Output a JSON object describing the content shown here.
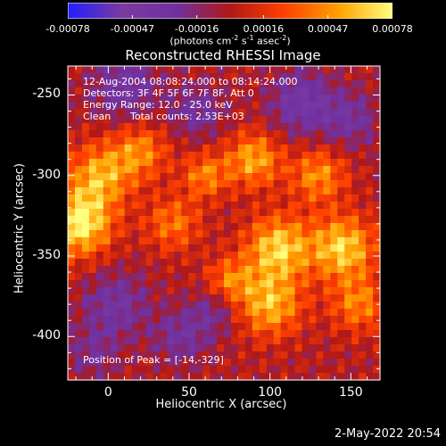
{
  "chart_data": {
    "type": "heatmap",
    "title": "Reconstructed RHESSI Image",
    "xlabel": "Heliocentric X (arcsec)",
    "ylabel": "Heliocentric Y (arcsec)",
    "xlim": [
      -25,
      168
    ],
    "ylim": [
      -427,
      -232
    ],
    "xticks": [
      0,
      50,
      100,
      150
    ],
    "xtick_labels": [
      "0",
      "50",
      "100",
      "150"
    ],
    "yticks": [
      -250,
      -300,
      -350,
      -400
    ],
    "ytick_labels": [
      "-250",
      "-300",
      "-350",
      "-400"
    ],
    "colorbar": {
      "range": [
        -0.00078,
        0.00078
      ],
      "ticks": [
        -0.00078,
        -0.00047,
        -0.00016,
        0.00016,
        0.00047,
        0.00078
      ],
      "tick_labels": [
        "-0.00078",
        "-0.00047",
        "-0.00016",
        "0.00016",
        "0.00047",
        "0.00078"
      ],
      "units_prefix": "(photons cm",
      "units_exp1": "-2",
      "units_mid": " s",
      "units_exp2": "-1",
      "units_mid2": " asec",
      "units_exp3": "-2",
      "units_suffix": ")",
      "colors": [
        "#2020ff",
        "#7a3aa0",
        "#7030a0",
        "#b01818",
        "#ff4000",
        "#ffa000",
        "#ffff80"
      ]
    },
    "annotations": {
      "time_range": "12-Aug-2004 08:08:24.000 to 08:14:24.000",
      "detectors": "Detectors: 3F 4F 5F 6F 7F 8F, Att 0",
      "energy": "Energy Range: 12.0 - 25.0 keV",
      "method": "Clean",
      "counts": "Total counts: 2.53E+03",
      "peak": "Position of Peak = [-14,-329]"
    },
    "blobs": [
      {
        "x": -18,
        "y": -330,
        "amp": 1.0,
        "s": 14
      },
      {
        "x": -5,
        "y": -300,
        "amp": 0.7,
        "s": 14
      },
      {
        "x": 20,
        "y": -285,
        "amp": 0.55,
        "s": 12
      },
      {
        "x": 40,
        "y": -330,
        "amp": 0.5,
        "s": 12
      },
      {
        "x": 60,
        "y": -300,
        "amp": 0.55,
        "s": 10
      },
      {
        "x": 90,
        "y": -290,
        "amp": 0.7,
        "s": 12
      },
      {
        "x": 130,
        "y": -300,
        "amp": 0.6,
        "s": 12
      },
      {
        "x": 105,
        "y": -345,
        "amp": 0.85,
        "s": 14
      },
      {
        "x": 145,
        "y": -345,
        "amp": 0.85,
        "s": 14
      },
      {
        "x": 100,
        "y": -380,
        "amp": 0.75,
        "s": 14
      },
      {
        "x": 155,
        "y": -380,
        "amp": 0.55,
        "s": 12
      },
      {
        "x": 75,
        "y": -365,
        "amp": 0.5,
        "s": 10
      },
      {
        "x": 10,
        "y": -245,
        "amp": -0.5,
        "s": 14
      },
      {
        "x": 55,
        "y": -260,
        "amp": -0.4,
        "s": 12
      },
      {
        "x": 120,
        "y": -255,
        "amp": -0.55,
        "s": 14
      },
      {
        "x": 150,
        "y": -265,
        "amp": -0.4,
        "s": 12
      },
      {
        "x": 5,
        "y": -380,
        "amp": -0.45,
        "s": 14
      },
      {
        "x": 45,
        "y": -400,
        "amp": -0.4,
        "s": 12
      },
      {
        "x": 65,
        "y": -385,
        "amp": -0.35,
        "s": 10
      },
      {
        "x": -10,
        "y": -410,
        "amp": -0.3,
        "s": 12
      }
    ]
  },
  "footer": {
    "datestamp": "2-May-2022 20:54"
  }
}
